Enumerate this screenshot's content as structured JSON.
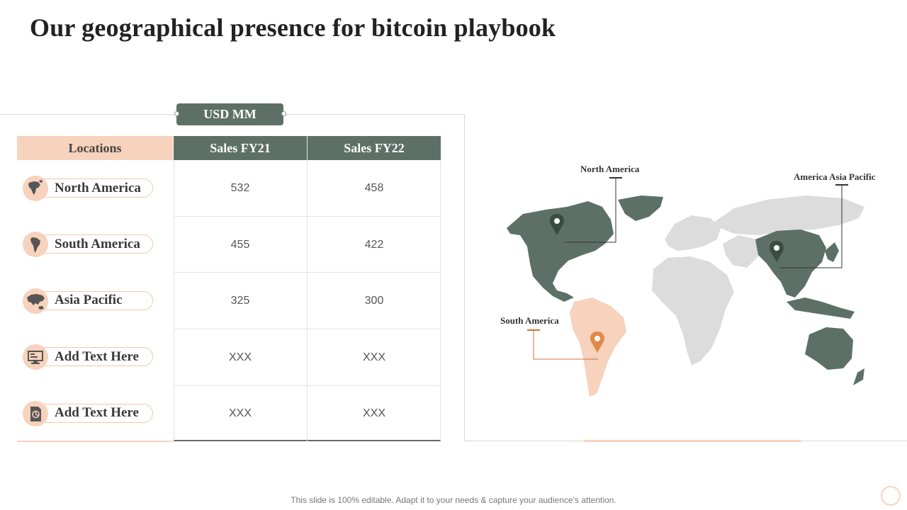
{
  "title": "Our geographical presence for bitcoin playbook",
  "unit_label": "USD MM",
  "table": {
    "headers": [
      "Locations",
      "Sales FY21",
      "Sales FY22"
    ],
    "rows": [
      {
        "location": "North America",
        "icon": "north-america-icon",
        "fy21": "532",
        "fy22": "458"
      },
      {
        "location": "South America",
        "icon": "south-america-icon",
        "fy21": "455",
        "fy22": "422"
      },
      {
        "location": "Asia Pacific",
        "icon": "asia-pacific-icon",
        "fy21": "325",
        "fy22": "300"
      },
      {
        "location": "Add Text Here",
        "icon": "monitor-icon",
        "fy21": "XXX",
        "fy22": "XXX"
      },
      {
        "location": "Add Text Here",
        "icon": "document-icon",
        "fy21": "XXX",
        "fy22": "XXX"
      }
    ]
  },
  "map": {
    "labels": {
      "north_america": "North America",
      "asia_pacific": "America Asia Pacific",
      "south_america": "South America"
    }
  },
  "footer": "This slide is 100% editable. Adapt it to your needs & capture your audience’s attention.",
  "colors": {
    "accent_green": "#5d7068",
    "accent_peach": "#f7d2bc",
    "pin_orange": "#e08a4a",
    "land_grey": "#dcdcdc"
  }
}
